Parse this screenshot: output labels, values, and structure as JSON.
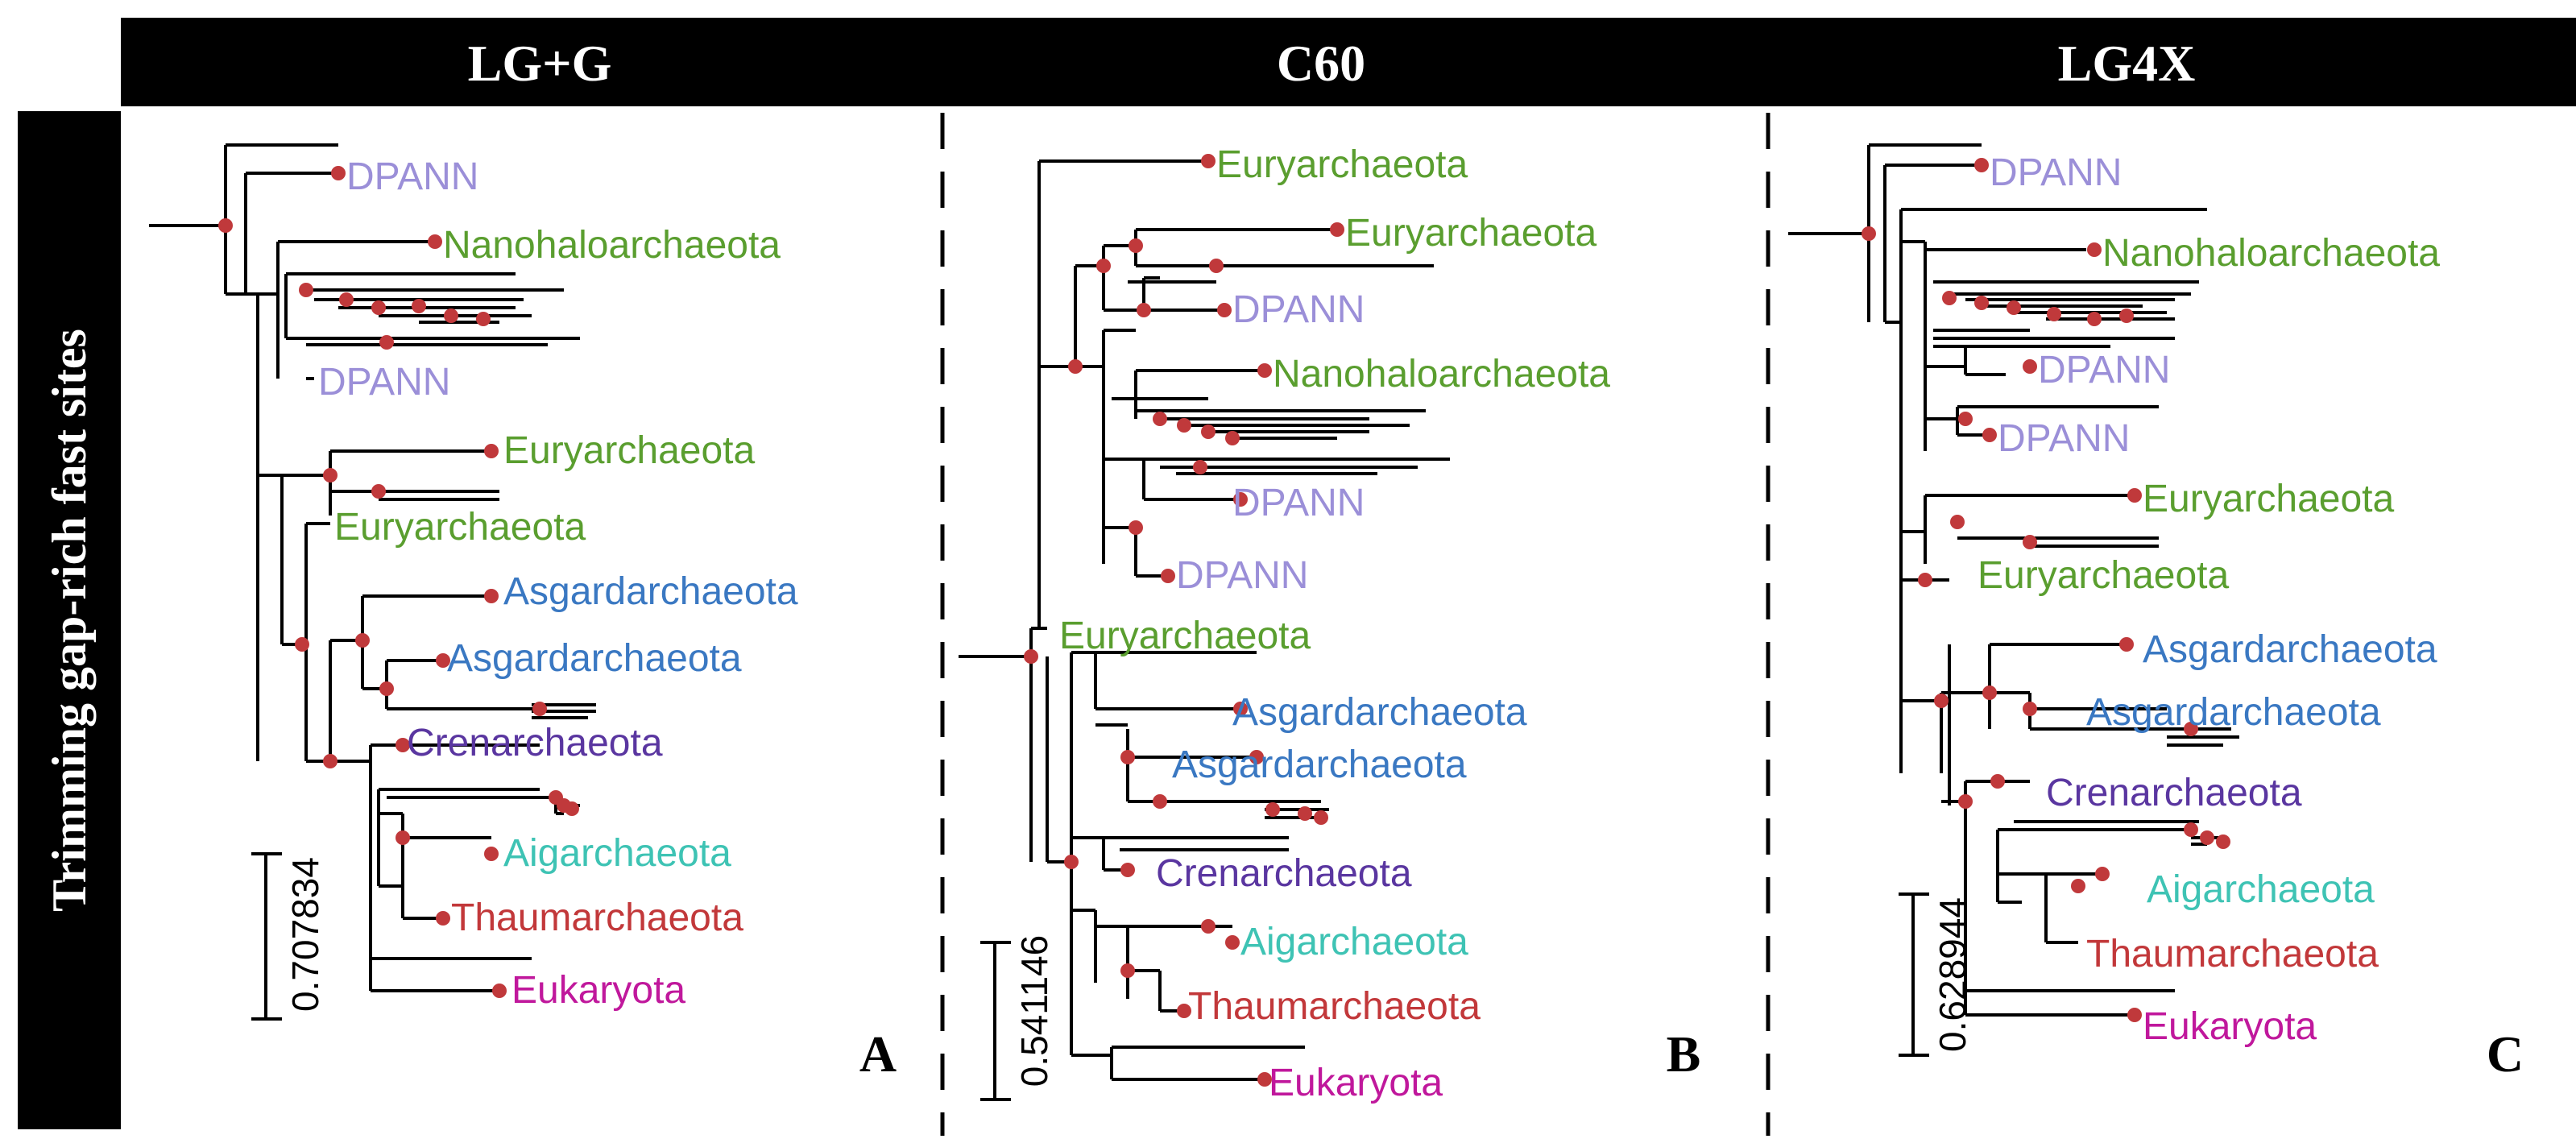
{
  "figure": {
    "side_label": "Trimming gap-rich fast sites",
    "colors": {
      "header_bg": "#000000",
      "header_text": "#ffffff",
      "branch": "#000000",
      "node": "#c0393b",
      "DPANN": "#9b8fd8",
      "Euryarchaeota": "#5a9e2f",
      "Nanohaloarchaeota": "#5a9e2f",
      "Asgardarchaeota": "#3a78c2",
      "Crenarchaeota": "#5a36a0",
      "Aigarchaeota": "#3ec3b4",
      "Thaumarchaeota": "#c2383a",
      "Eukaryota": "#c0189c"
    },
    "panels": [
      {
        "header": "LG+G",
        "letter": "A",
        "scale_label": "0.707834",
        "clades": [
          "DPANN",
          "Nanohaloarchaeota",
          "DPANN",
          "Euryarchaeota",
          "Euryarchaeota",
          "Asgardarchaeota",
          "Asgardarchaeota",
          "Crenarchaeota",
          "Aigarchaeota",
          "Thaumarchaeota",
          "Eukaryota"
        ]
      },
      {
        "header": "C60",
        "letter": "B",
        "scale_label": "0.541146",
        "clades": [
          "Euryarchaeota",
          "Euryarchaeota",
          "DPANN",
          "Nanohaloarchaeota",
          "DPANN",
          "DPANN",
          "Euryarchaeota",
          "Asgardarchaeota",
          "Asgardarchaeota",
          "Crenarchaeota",
          "Aigarchaeota",
          "Thaumarchaeota",
          "Eukaryota"
        ]
      },
      {
        "header": "LG4X",
        "letter": "C",
        "scale_label": "0.628944",
        "clades": [
          "DPANN",
          "Nanohaloarchaeota",
          "DPANN",
          "DPANN",
          "Euryarchaeota",
          "Euryarchaeota",
          "Asgardarchaeota",
          "Asgardarchaeota",
          "Crenarchaeota",
          "Aigarchaeota",
          "Thaumarchaeota",
          "Eukaryota"
        ]
      }
    ]
  }
}
